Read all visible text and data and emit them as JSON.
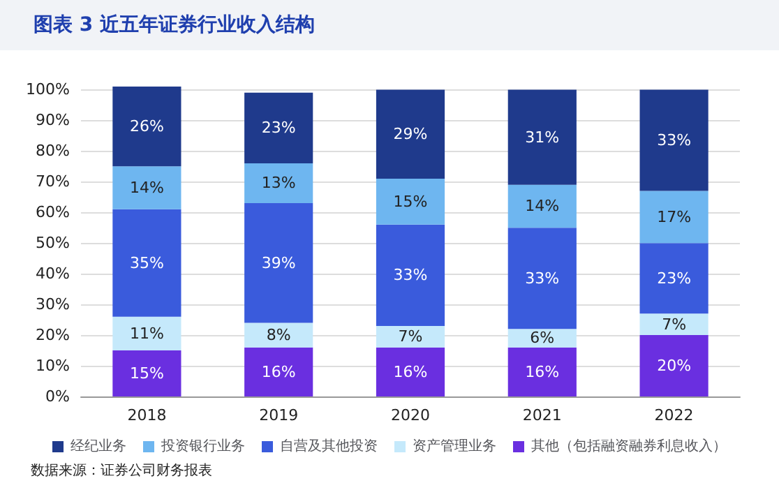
{
  "chart_data": {
    "type": "bar",
    "stacked": true,
    "title": "图表 3 近五年证券行业收入结构",
    "categories": [
      "2018",
      "2019",
      "2020",
      "2021",
      "2022"
    ],
    "series": [
      {
        "name": "其他（包括融资融券利息收入）",
        "color": "#6a2fe0",
        "values": [
          15,
          16,
          16,
          16,
          20
        ],
        "value_labels": [
          "15%",
          "16%",
          "16%",
          "16%",
          "20%"
        ]
      },
      {
        "name": "资产管理业务",
        "color": "#c5e9fb",
        "values": [
          11,
          8,
          7,
          6,
          7
        ],
        "value_labels": [
          "11%",
          "8%",
          "7%",
          "6%",
          "7%"
        ]
      },
      {
        "name": "自营及其他投资",
        "color": "#3a5bdc",
        "values": [
          35,
          39,
          33,
          33,
          23
        ],
        "value_labels": [
          "35%",
          "39%",
          "33%",
          "33%",
          "23%"
        ]
      },
      {
        "name": "投资银行业务",
        "color": "#6eb6f0",
        "values": [
          14,
          13,
          15,
          14,
          17
        ],
        "value_labels": [
          "14%",
          "13%",
          "15%",
          "14%",
          "17%"
        ]
      },
      {
        "name": "经纪业务",
        "color": "#1f3a8c",
        "values": [
          26,
          23,
          29,
          31,
          33
        ],
        "value_labels": [
          "26%",
          "23%",
          "29%",
          "31%",
          "33%"
        ]
      }
    ],
    "ylim": [
      0,
      101
    ],
    "yticks": [
      {
        "value": 0,
        "label": "0%"
      },
      {
        "value": 10,
        "label": "10%"
      },
      {
        "value": 20,
        "label": "20%"
      },
      {
        "value": 30,
        "label": "30%"
      },
      {
        "value": 40,
        "label": "40%"
      },
      {
        "value": 50,
        "label": "50%"
      },
      {
        "value": 60,
        "label": "60%"
      },
      {
        "value": 70,
        "label": "70%"
      },
      {
        "value": 80,
        "label": "80%"
      },
      {
        "value": 90,
        "label": "90%"
      },
      {
        "value": 100,
        "label": "100%"
      }
    ],
    "grid": "y",
    "legend": "bottom",
    "annotations": [
      "数据来源：证券公司财务报表"
    ]
  }
}
